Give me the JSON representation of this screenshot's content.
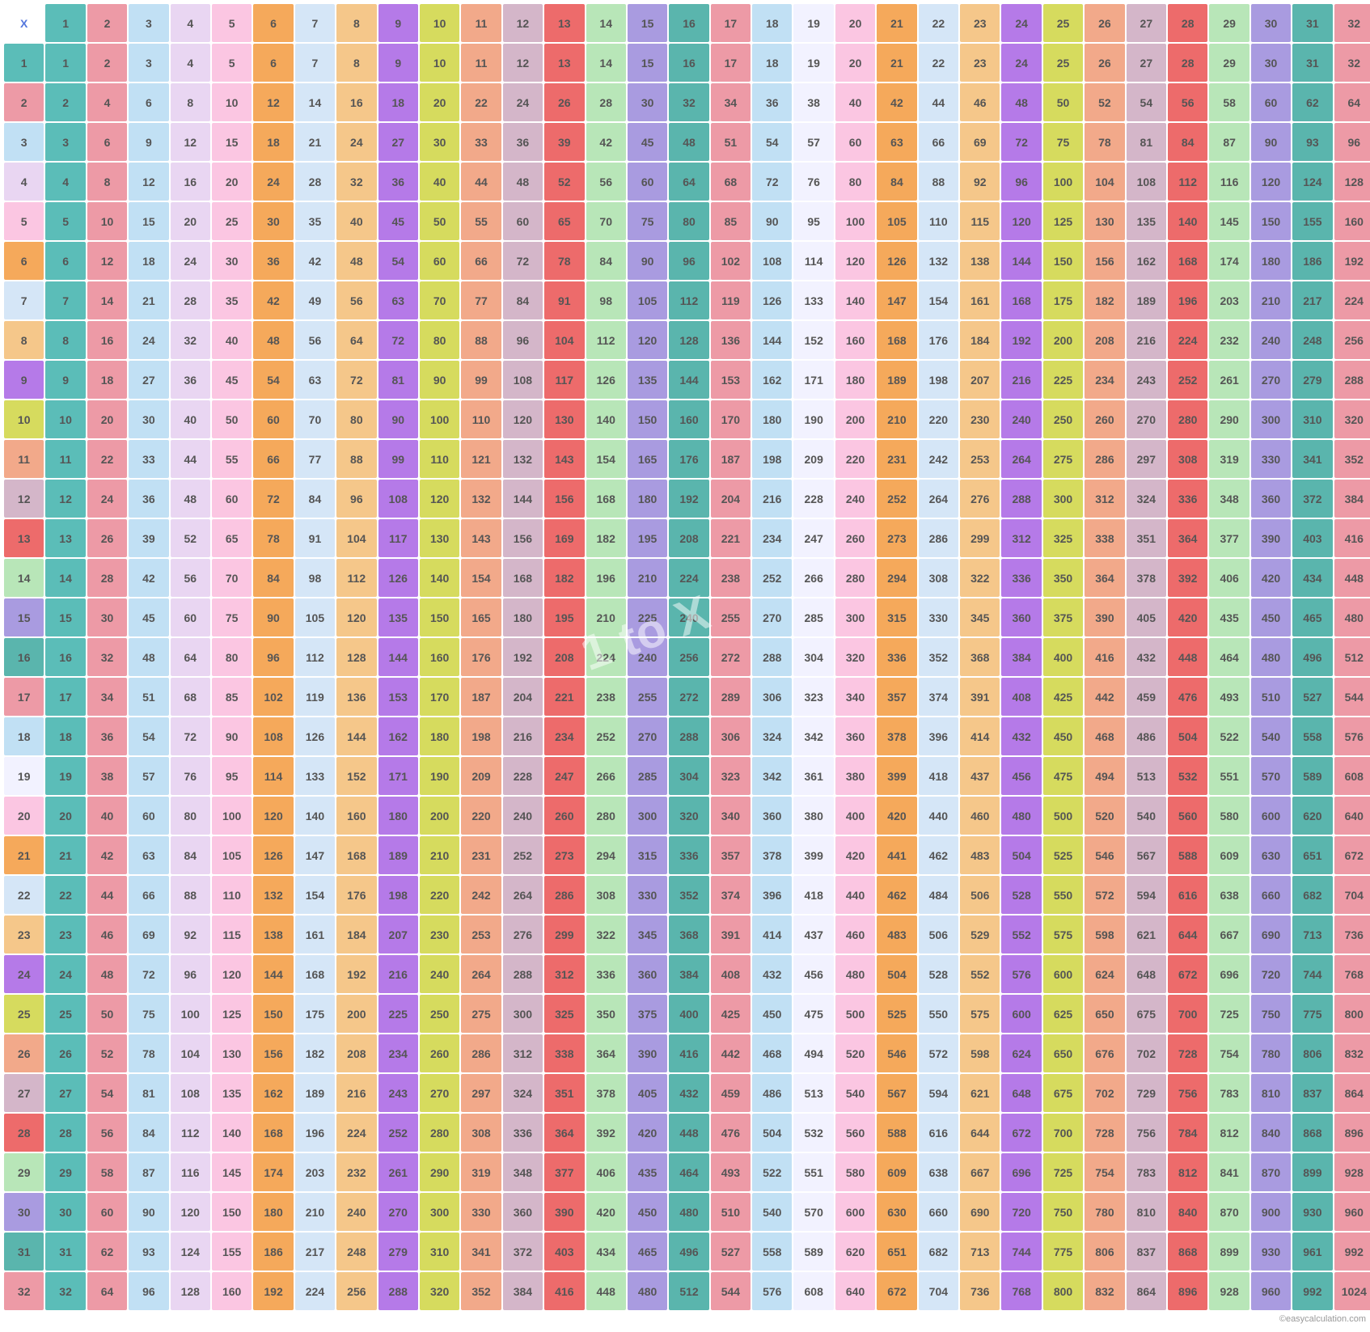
{
  "size": 32,
  "corner": "X",
  "watermark": "1 to X",
  "footer": "©easycalculation.com",
  "colors": {
    "1": "#5bbdb8",
    "2": "#ed9aa6",
    "3": "#c1e0f4",
    "4": "#e9d6f2",
    "5": "#fbc6e2",
    "6": "#f5a95b",
    "7": "#d5e6f7",
    "8": "#f5c78a",
    "9": "#b57ae8",
    "10": "#d6db5e",
    "11": "#f2a98a",
    "12": "#d4b6c9",
    "13": "#ed6b6b",
    "14": "#b8e6b8",
    "15": "#a99be0",
    "16": "#5ab5ad",
    "17": "#ed9aa6",
    "18": "#c1e0f4",
    "19": "#f2f2ff",
    "20": "#fbc6e2",
    "21": "#f5a95b",
    "22": "#d5e6f7",
    "23": "#f5c78a",
    "24": "#b57ae8",
    "25": "#d6db5e",
    "26": "#f2a98a",
    "27": "#d4b6c9",
    "28": "#ed6b6b",
    "29": "#b8e6b8",
    "30": "#a99be0",
    "31": "#5ab5ad",
    "32": "#ed9aa6"
  }
}
